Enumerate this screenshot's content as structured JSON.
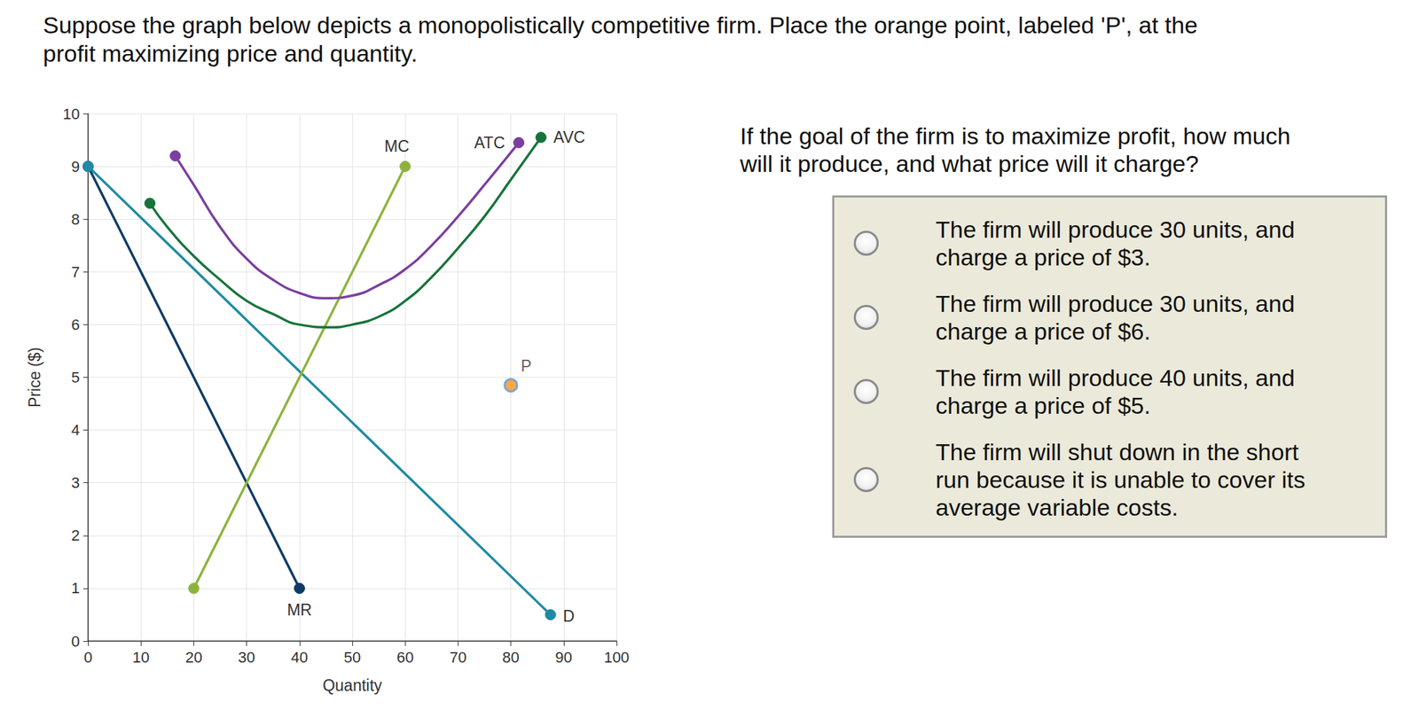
{
  "prompt": [
    "Suppose the graph below depicts a monopolistically competitive firm. Place the orange point, labeled 'P', at the",
    "profit maximizing price and quantity."
  ],
  "question": [
    "If the goal of the firm is to maximize profit, how much",
    "will it produce, and what price will it charge?"
  ],
  "options": [
    [
      "The firm will produce 30 units, and",
      "charge a price of $3."
    ],
    [
      "The firm will produce 30 units, and",
      "charge a price of $6."
    ],
    [
      "The firm will produce 40 units, and",
      "charge a price of $5."
    ],
    [
      "The firm will shut down in the short",
      "run because it is unable to cover its",
      "average variable costs."
    ]
  ],
  "chart_data": {
    "type": "line",
    "xlabel": "Quantity",
    "ylabel": "Price ($)",
    "xlim": [
      0,
      100
    ],
    "xticks": [
      0,
      10,
      20,
      30,
      40,
      50,
      60,
      70,
      80,
      90,
      100
    ],
    "ylim": [
      0,
      10
    ],
    "yticks": [
      0,
      1,
      2,
      3,
      4,
      5,
      6,
      7,
      8,
      9,
      10
    ],
    "grid": true,
    "series": [
      {
        "name": "MR",
        "type": "line",
        "color": "#0d3b66",
        "marker": "circle",
        "x": [
          0,
          40
        ],
        "values": [
          9,
          1
        ]
      },
      {
        "name": "D",
        "type": "line",
        "color": "#1f8ba3",
        "marker": "circle",
        "x": [
          0,
          87.5
        ],
        "values": [
          9,
          0.5
        ]
      },
      {
        "name": "MC",
        "type": "line",
        "color": "#8cb43c",
        "marker": "circle",
        "x": [
          20,
          60
        ],
        "values": [
          1,
          9
        ]
      },
      {
        "name": "ATC",
        "type": "line",
        "color": "#7b3fa0",
        "marker": "circle",
        "x": [
          16.5,
          20,
          25,
          30,
          35,
          40,
          45,
          50,
          55,
          60,
          65,
          70,
          75,
          81.5
        ],
        "values": [
          9.2,
          8.65,
          7.85,
          7.25,
          6.85,
          6.6,
          6.5,
          6.55,
          6.75,
          7.05,
          7.5,
          8.05,
          8.65,
          9.45
        ]
      },
      {
        "name": "AVC",
        "type": "line",
        "color": "#16743a",
        "marker": "circle",
        "x": [
          11.7,
          15,
          20,
          25,
          30,
          35,
          40,
          46,
          50,
          55,
          60,
          65,
          70,
          75,
          80,
          85.7
        ],
        "values": [
          8.3,
          7.85,
          7.3,
          6.85,
          6.45,
          6.2,
          6.0,
          5.95,
          6.0,
          6.15,
          6.45,
          6.9,
          7.45,
          8.05,
          8.75,
          9.55
        ]
      },
      {
        "name": "P",
        "type": "scatter",
        "color": "#f7941d",
        "marker": "circle",
        "x": [
          80
        ],
        "values": [
          4.85
        ]
      }
    ]
  }
}
